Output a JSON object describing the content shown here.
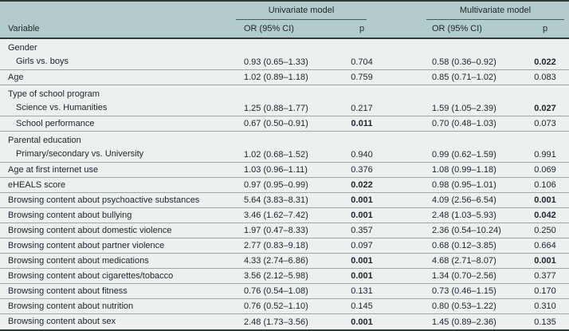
{
  "colors": {
    "top_bottom_rule": "#2e3a3a",
    "header_background": "#b2cccd",
    "header_underline": "#4a5857",
    "body_background": "#ecf1f0",
    "row_separator": "#9aa8a7",
    "text": "#20262a"
  },
  "table": {
    "title_groups": {
      "univariate": "Univariate model",
      "multivariate": "Multivariate model"
    },
    "column_headers": {
      "variable": "Variable",
      "or_univariate": "OR (95% CI)",
      "p_univariate": "p",
      "or_multivariate": "OR (95% CI)",
      "p_multivariate": "p"
    },
    "rows": [
      {
        "label": "Gender",
        "sublabel": "Girls vs. boys",
        "indent": false,
        "uni_or": "0.93 (0.65–1.33)",
        "uni_p": "0.704",
        "uni_p_bold": false,
        "multi_or": "0.58 (0.36–0.92)",
        "multi_p": "0.022",
        "multi_p_bold": true
      },
      {
        "label": "Age",
        "sublabel": null,
        "indent": false,
        "uni_or": "1.02 (0.89–1.18)",
        "uni_p": "0.759",
        "uni_p_bold": false,
        "multi_or": "0.85 (0.71–1.02)",
        "multi_p": "0.083",
        "multi_p_bold": false
      },
      {
        "label": "Type of school program",
        "sublabel": "Science vs. Humanities",
        "indent": false,
        "uni_or": "1.25 (0.88–1.77)",
        "uni_p": "0.217",
        "uni_p_bold": false,
        "multi_or": "1.59 (1.05–2.39)",
        "multi_p": "0.027",
        "multi_p_bold": true
      },
      {
        "label": "School performance",
        "sublabel": null,
        "indent": true,
        "uni_or": "0.67 (0.50–0.91)",
        "uni_p": "0.011",
        "uni_p_bold": true,
        "multi_or": "0.70 (0.48–1.03)",
        "multi_p": "0.073",
        "multi_p_bold": false
      },
      {
        "label": "Parental education",
        "sublabel": "Primary/secondary vs. University",
        "indent": false,
        "uni_or": "1.02 (0.68–1.52)",
        "uni_p": "0.940",
        "uni_p_bold": false,
        "multi_or": "0.99 (0.62–1.59)",
        "multi_p": "0.991",
        "multi_p_bold": false
      },
      {
        "label": "Age at first internet use",
        "sublabel": null,
        "indent": false,
        "uni_or": "1.03 (0.96–1.11)",
        "uni_p": "0.376",
        "uni_p_bold": false,
        "multi_or": "1.08 (0.99–1.18)",
        "multi_p": "0.069",
        "multi_p_bold": false
      },
      {
        "label": "eHEALS score",
        "sublabel": null,
        "indent": false,
        "uni_or": "0.97 (0.95–0.99)",
        "uni_p": "0.022",
        "uni_p_bold": true,
        "multi_or": "0.98 (0.95–1.01)",
        "multi_p": "0.106",
        "multi_p_bold": false
      },
      {
        "label": "Browsing content about psychoactive substances",
        "sublabel": null,
        "indent": false,
        "uni_or": "5.64 (3.83–8.31)",
        "uni_p": "0.001",
        "uni_p_bold": true,
        "multi_or": "4.09 (2.56–6.54)",
        "multi_p": "0.001",
        "multi_p_bold": true
      },
      {
        "label": "Browsing content about bullying",
        "sublabel": null,
        "indent": false,
        "uni_or": "3.46 (1.62–7.42)",
        "uni_p": "0.001",
        "uni_p_bold": true,
        "multi_or": "2.48 (1.03–5.93)",
        "multi_p": "0.042",
        "multi_p_bold": true
      },
      {
        "label": "Browsing content about domestic violence",
        "sublabel": null,
        "indent": false,
        "uni_or": "1.97 (0.47–8.33)",
        "uni_p": "0.357",
        "uni_p_bold": false,
        "multi_or": "2.36 (0.54–10.24)",
        "multi_p": "0.250",
        "multi_p_bold": false
      },
      {
        "label": "Browsing content about partner violence",
        "sublabel": null,
        "indent": false,
        "uni_or": "2.77 (0.83–9.18)",
        "uni_p": "0.097",
        "uni_p_bold": false,
        "multi_or": "0.68 (0.12–3.85)",
        "multi_p": "0.664",
        "multi_p_bold": false
      },
      {
        "label": "Browsing content about medications",
        "sublabel": null,
        "indent": false,
        "uni_or": "4.33 (2.74–6.86)",
        "uni_p": "0.001",
        "uni_p_bold": true,
        "multi_or": "4.68 (2.71–8.07)",
        "multi_p": "0.001",
        "multi_p_bold": true
      },
      {
        "label": "Browsing content about cigarettes/tobacco",
        "sublabel": null,
        "indent": false,
        "uni_or": "3.56 (2.12–5.98)",
        "uni_p": "0.001",
        "uni_p_bold": true,
        "multi_or": "1.34 (0.70–2.56)",
        "multi_p": "0.377",
        "multi_p_bold": false
      },
      {
        "label": "Browsing content about fitness",
        "sublabel": null,
        "indent": false,
        "uni_or": "0.76 (0.54–1.08)",
        "uni_p": "0.131",
        "uni_p_bold": false,
        "multi_or": "0.73 (0.46–1.15)",
        "multi_p": "0.170",
        "multi_p_bold": false
      },
      {
        "label": "Browsing content about nutrition",
        "sublabel": null,
        "indent": false,
        "uni_or": "0.76 (0.52–1.10)",
        "uni_p": "0.145",
        "uni_p_bold": false,
        "multi_or": "0.80 (0.53–1.22)",
        "multi_p": "0.310",
        "multi_p_bold": false
      },
      {
        "label": "Browsing content about sex",
        "sublabel": null,
        "indent": false,
        "uni_or": "2.48 (1.73–3.56)",
        "uni_p": "0.001",
        "uni_p_bold": true,
        "multi_or": "1.45 (0.89–2.36)",
        "multi_p": "0.135",
        "multi_p_bold": false
      }
    ]
  }
}
